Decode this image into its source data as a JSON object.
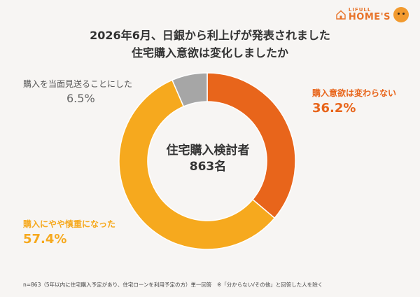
{
  "logo": {
    "small_text": "LIFULL",
    "big_text": "HOME'S"
  },
  "title_line1": "2026年6月、日銀から利上げが発表されました",
  "title_line2": "住宅購入意欲は変化しましたか",
  "center": {
    "line1": "住宅購入検討者",
    "line2": "863名"
  },
  "colors": {
    "unchanged": "#e8651b",
    "cautious": "#f6a91e",
    "postponed": "#a6a6a6",
    "background": "#f7f5f3"
  },
  "chart_data": {
    "type": "pie",
    "donut": true,
    "slices": [
      {
        "label": "購入意欲は変わらない",
        "value": 36.2,
        "display": "36.2%",
        "color": "#e8651b"
      },
      {
        "label": "購入にやや慎重になった",
        "value": 57.4,
        "display": "57.4%",
        "color": "#f6a91e"
      },
      {
        "label": "購入を当面見送ることにした",
        "value": 6.5,
        "display": "6.5%",
        "color": "#a6a6a6"
      }
    ]
  },
  "footer": "n=863（5年以内に住宅購入予定があり、住宅ローンを利用予定の方）単一回答　※「分からない/その他」と回答した人を除く"
}
